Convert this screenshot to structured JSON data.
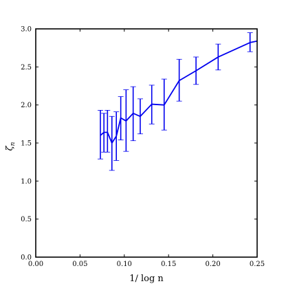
{
  "chart_data": {
    "type": "line",
    "title": "",
    "xlabel": "1/ log  n",
    "ylabel": "ζ_n",
    "xlim": [
      0.0,
      0.25
    ],
    "ylim": [
      0.0,
      3.0
    ],
    "xticks": [
      "0.00",
      "0.05",
      "0.10",
      "0.15",
      "0.20",
      "0.25"
    ],
    "yticks": [
      "0.0",
      "0.5",
      "1.0",
      "1.5",
      "2.0",
      "2.5",
      "3.0"
    ],
    "grid": false,
    "legend": "none",
    "series": [
      {
        "color": "#0000ee",
        "points": [
          {
            "x": 0.073,
            "y": 1.6,
            "lo": 1.29,
            "hi": 1.93
          },
          {
            "x": 0.077,
            "y": 1.64,
            "lo": 1.38,
            "hi": 1.89
          },
          {
            "x": 0.081,
            "y": 1.64,
            "lo": 1.38,
            "hi": 1.93
          },
          {
            "x": 0.086,
            "y": 1.5,
            "lo": 1.14,
            "hi": 1.85
          },
          {
            "x": 0.091,
            "y": 1.59,
            "lo": 1.27,
            "hi": 1.91
          },
          {
            "x": 0.096,
            "y": 1.83,
            "lo": 1.54,
            "hi": 2.11
          },
          {
            "x": 0.102,
            "y": 1.79,
            "lo": 1.39,
            "hi": 2.2
          },
          {
            "x": 0.11,
            "y": 1.89,
            "lo": 1.53,
            "hi": 2.24
          },
          {
            "x": 0.118,
            "y": 1.85,
            "lo": 1.62,
            "hi": 2.08
          },
          {
            "x": 0.131,
            "y": 2.01,
            "lo": 1.75,
            "hi": 2.26
          },
          {
            "x": 0.145,
            "y": 2.0,
            "lo": 1.67,
            "hi": 2.34
          },
          {
            "x": 0.162,
            "y": 2.32,
            "lo": 2.05,
            "hi": 2.6
          },
          {
            "x": 0.181,
            "y": 2.45,
            "lo": 2.27,
            "hi": 2.63
          },
          {
            "x": 0.206,
            "y": 2.63,
            "lo": 2.46,
            "hi": 2.8
          },
          {
            "x": 0.242,
            "y": 2.82,
            "lo": 2.7,
            "hi": 2.95
          },
          {
            "x": 0.25,
            "y": 2.84,
            "lo": null,
            "hi": null
          }
        ]
      }
    ]
  }
}
